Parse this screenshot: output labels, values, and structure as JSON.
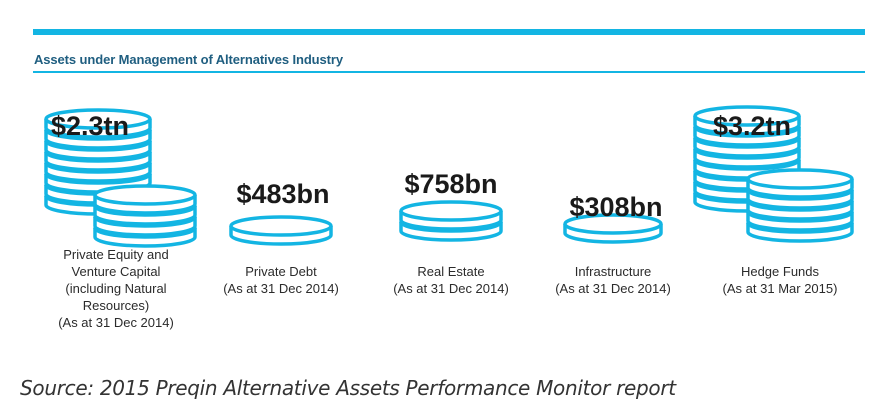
{
  "header": {
    "title": "Assets under Management of Alternatives Industry"
  },
  "colors": {
    "accent": "#13b5e3",
    "coin_fill": "#ffffff",
    "coin_stroke": "#13b5e3",
    "title": "#1f5e80"
  },
  "chart_data": {
    "type": "bar",
    "title": "Assets under Management of Alternatives Industry",
    "categories": [
      "Private Equity and Venture Capital (including Natural Resources)",
      "Private Debt",
      "Real Estate",
      "Infrastructure",
      "Hedge Funds"
    ],
    "values_usd_bn": [
      2300,
      483,
      758,
      308,
      3200
    ],
    "items": [
      {
        "value_label": "$2.3tn",
        "value_usd_bn": 2300,
        "label_lines": [
          "Private Equity and",
          "Venture Capital",
          "(including Natural",
          "Resources)"
        ],
        "as_at": "(As at 31 Dec 2014)"
      },
      {
        "value_label": "$483bn",
        "value_usd_bn": 483,
        "label_lines": [
          "Private Debt"
        ],
        "as_at": "(As at 31 Dec 2014)"
      },
      {
        "value_label": "$758bn",
        "value_usd_bn": 758,
        "label_lines": [
          "Real Estate"
        ],
        "as_at": "(As at 31 Dec 2014)"
      },
      {
        "value_label": "$308bn",
        "value_usd_bn": 308,
        "label_lines": [
          "Infrastructure"
        ],
        "as_at": "(As at 31 Dec 2014)"
      },
      {
        "value_label": "$3.2tn",
        "value_usd_bn": 3200,
        "label_lines": [
          "Hedge Funds"
        ],
        "as_at": "(As at 31 Mar 2015)"
      }
    ]
  },
  "source": "Source: 2015 Preqin Alternative Assets Performance Monitor report"
}
